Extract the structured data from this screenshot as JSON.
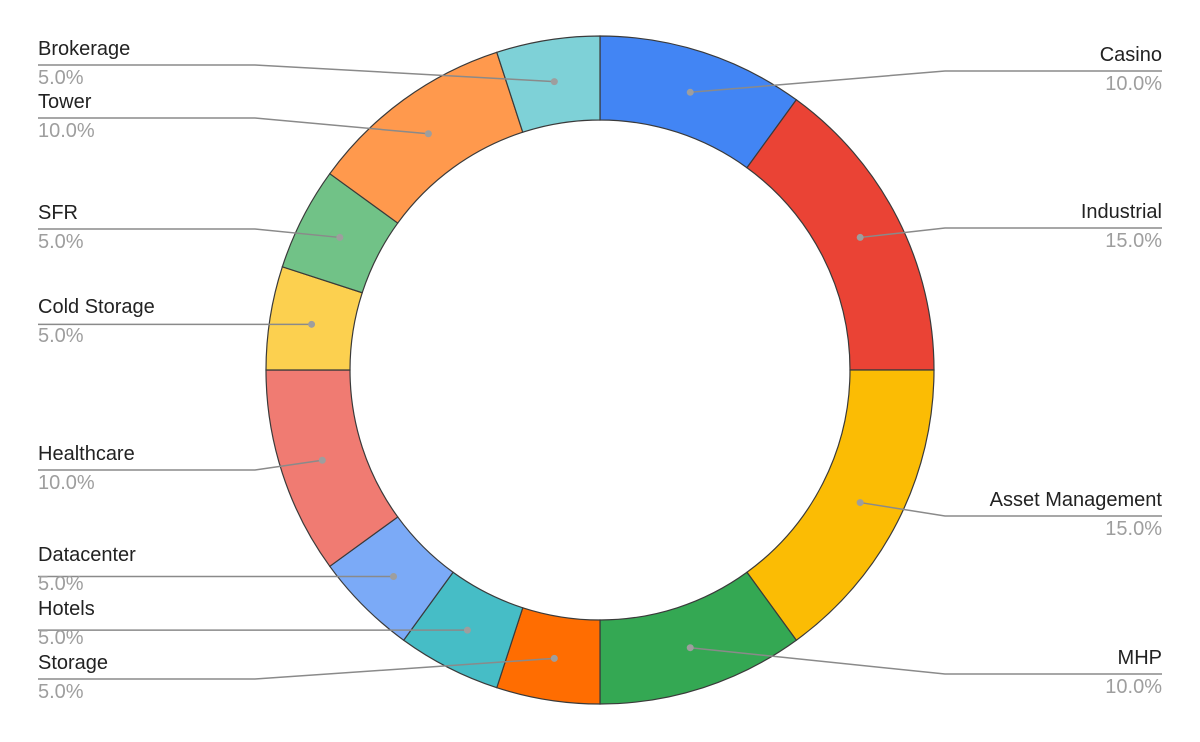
{
  "chart_data": {
    "type": "pie",
    "donut": true,
    "start_angle_deg": 0,
    "direction": "clockwise",
    "title": "",
    "slices": [
      {
        "label": "Casino",
        "value": 10.0,
        "percent_label": "10.0%",
        "color": "#4285f4",
        "side": "right"
      },
      {
        "label": "Industrial",
        "value": 15.0,
        "percent_label": "15.0%",
        "color": "#ea4335",
        "side": "right"
      },
      {
        "label": "Asset Management",
        "value": 15.0,
        "percent_label": "15.0%",
        "color": "#fbbc04",
        "side": "right"
      },
      {
        "label": "MHP",
        "value": 10.0,
        "percent_label": "10.0%",
        "color": "#34a853",
        "side": "right"
      },
      {
        "label": "Storage",
        "value": 5.0,
        "percent_label": "5.0%",
        "color": "#ff6d01",
        "side": "left"
      },
      {
        "label": "Hotels",
        "value": 5.0,
        "percent_label": "5.0%",
        "color": "#46bdc6",
        "side": "left"
      },
      {
        "label": "Datacenter",
        "value": 5.0,
        "percent_label": "5.0%",
        "color": "#7baaf7",
        "side": "left"
      },
      {
        "label": "Healthcare",
        "value": 10.0,
        "percent_label": "10.0%",
        "color": "#f07b72",
        "side": "left"
      },
      {
        "label": "Cold Storage",
        "value": 5.0,
        "percent_label": "5.0%",
        "color": "#fcd04f",
        "side": "left"
      },
      {
        "label": "SFR",
        "value": 5.0,
        "percent_label": "5.0%",
        "color": "#71c287",
        "side": "left"
      },
      {
        "label": "Tower",
        "value": 10.0,
        "percent_label": "10.0%",
        "color": "#ff994d",
        "side": "left"
      },
      {
        "label": "Brokerage",
        "value": 5.0,
        "percent_label": "5.0%",
        "color": "#7ed1d7",
        "side": "left"
      }
    ]
  }
}
